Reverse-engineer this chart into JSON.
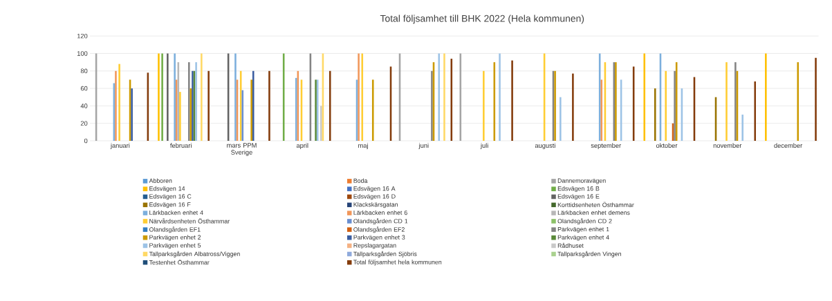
{
  "chart_data": {
    "type": "bar",
    "title": "Total följsamhet till BHK 2022 (Hela kommunen)",
    "categories": [
      "januari",
      "februari",
      "mars PPM Sverige",
      "april",
      "maj",
      "juni",
      "juli",
      "augusti",
      "september",
      "oktober",
      "november",
      "december"
    ],
    "ylim": [
      0,
      120
    ],
    "yticks": [
      0,
      20,
      40,
      60,
      80,
      100,
      120
    ],
    "grid": "y",
    "legend": "bottom",
    "series": [
      {
        "name": "Abboren",
        "color": "#5b9bd5",
        "values": [
          null,
          null,
          null,
          null,
          null,
          null,
          null,
          null,
          null,
          null,
          null,
          null
        ]
      },
      {
        "name": "Boda",
        "color": "#ed7d31",
        "values": [
          null,
          null,
          null,
          null,
          null,
          null,
          null,
          null,
          null,
          null,
          null,
          null
        ]
      },
      {
        "name": "Dannemoravägen",
        "color": "#a5a5a5",
        "values": [
          100,
          null,
          null,
          null,
          null,
          100,
          100,
          null,
          null,
          null,
          null,
          null
        ]
      },
      {
        "name": "Edsvägen 14",
        "color": "#ffc000",
        "values": [
          null,
          100,
          null,
          null,
          null,
          null,
          null,
          null,
          null,
          100,
          null,
          100
        ]
      },
      {
        "name": "Edsvägen 16 A",
        "color": "#4472c4",
        "values": [
          null,
          null,
          null,
          null,
          null,
          null,
          null,
          null,
          null,
          null,
          null,
          null
        ]
      },
      {
        "name": "Edsvägen 16 B",
        "color": "#70ad47",
        "values": [
          null,
          100,
          null,
          100,
          null,
          null,
          null,
          null,
          null,
          null,
          null,
          null
        ]
      },
      {
        "name": "Edsvägen 16 C",
        "color": "#255e91",
        "values": [
          null,
          null,
          null,
          null,
          null,
          null,
          null,
          null,
          null,
          null,
          null,
          null
        ]
      },
      {
        "name": "Edsvägen 16 D",
        "color": "#9e480e",
        "values": [
          null,
          null,
          null,
          null,
          null,
          null,
          null,
          null,
          null,
          null,
          null,
          null
        ]
      },
      {
        "name": "Edsvägen 16 E",
        "color": "#636363",
        "values": [
          null,
          100,
          100,
          null,
          null,
          null,
          null,
          null,
          null,
          null,
          null,
          null
        ]
      },
      {
        "name": "Edsvägen 16 F",
        "color": "#997300",
        "values": [
          null,
          null,
          null,
          null,
          null,
          null,
          null,
          null,
          null,
          60,
          50,
          null
        ]
      },
      {
        "name": "Klackskärsgatan",
        "color": "#264478",
        "values": [
          null,
          null,
          null,
          null,
          null,
          null,
          null,
          null,
          null,
          null,
          null,
          null
        ]
      },
      {
        "name": "Korttidsenheten Östhammar",
        "color": "#43682b",
        "values": [
          null,
          null,
          null,
          null,
          null,
          null,
          null,
          null,
          null,
          null,
          null,
          null
        ]
      },
      {
        "name": "Lärkbacken enhet 4",
        "color": "#7cafdd",
        "values": [
          66,
          100,
          100,
          72,
          70,
          null,
          null,
          null,
          100,
          100,
          null,
          null
        ]
      },
      {
        "name": "Lärkbacken enhet 6",
        "color": "#f1975a",
        "values": [
          80,
          70,
          70,
          80,
          100,
          null,
          null,
          null,
          70,
          null,
          null,
          null
        ]
      },
      {
        "name": "Lärkbacken enhet demens",
        "color": "#b7b7b7",
        "values": [
          null,
          90,
          null,
          null,
          null,
          null,
          null,
          null,
          null,
          null,
          null,
          null
        ]
      },
      {
        "name": "Närvårdsenheten Östhammar",
        "color": "#ffcd33",
        "values": [
          88,
          56,
          80,
          70,
          100,
          null,
          80,
          100,
          90,
          80,
          90,
          null
        ]
      },
      {
        "name": "Olandsgården CD 1",
        "color": "#698ed0",
        "values": [
          null,
          null,
          58,
          null,
          null,
          null,
          null,
          null,
          null,
          null,
          null,
          null
        ]
      },
      {
        "name": "Olandsgården CD 2",
        "color": "#8cc168",
        "values": [
          null,
          null,
          null,
          null,
          null,
          null,
          null,
          null,
          null,
          null,
          null,
          null
        ]
      },
      {
        "name": "Olandsgården EF1",
        "color": "#327dc2",
        "values": [
          null,
          null,
          null,
          null,
          null,
          null,
          null,
          null,
          null,
          null,
          null,
          null
        ]
      },
      {
        "name": "Olandsgården EF2",
        "color": "#d26012",
        "values": [
          null,
          null,
          null,
          null,
          null,
          null,
          null,
          null,
          null,
          20,
          null,
          null
        ]
      },
      {
        "name": "Parkvägen enhet 1",
        "color": "#848484",
        "values": [
          null,
          90,
          null,
          100,
          null,
          80,
          null,
          80,
          90,
          80,
          90,
          null
        ]
      },
      {
        "name": "Parkvägen enhet 2",
        "color": "#cc9a00",
        "values": [
          70,
          60,
          70,
          null,
          70,
          90,
          90,
          80,
          90,
          90,
          80,
          90
        ]
      },
      {
        "name": "Parkvägen enhet 3",
        "color": "#3a5da0",
        "values": [
          60,
          80,
          80,
          null,
          null,
          null,
          null,
          null,
          null,
          null,
          null,
          null
        ]
      },
      {
        "name": "Parkvägen enhet 4",
        "color": "#5a8a39",
        "values": [
          null,
          80,
          null,
          70,
          null,
          null,
          null,
          null,
          null,
          null,
          null,
          null
        ]
      },
      {
        "name": "Parkvägen enhet 5",
        "color": "#9dc3e6",
        "values": [
          null,
          90,
          null,
          70,
          null,
          100,
          100,
          50,
          70,
          60,
          30,
          null
        ]
      },
      {
        "name": "Repslagargatan",
        "color": "#f4b183",
        "values": [
          null,
          null,
          null,
          null,
          null,
          null,
          null,
          null,
          null,
          null,
          null,
          null
        ]
      },
      {
        "name": "Rådhuset",
        "color": "#c9c9c9",
        "values": [
          null,
          null,
          null,
          40,
          null,
          null,
          null,
          null,
          null,
          null,
          null,
          null
        ]
      },
      {
        "name": "Tallparksgården Albatross/Viggen",
        "color": "#ffd966",
        "values": [
          null,
          100,
          null,
          100,
          null,
          100,
          null,
          null,
          null,
          null,
          null,
          null
        ]
      },
      {
        "name": "Tallparksgården Sjöbris",
        "color": "#8faadc",
        "values": [
          null,
          null,
          null,
          null,
          null,
          null,
          null,
          null,
          null,
          null,
          null,
          null
        ]
      },
      {
        "name": "Tallparksgården Vingen",
        "color": "#a9d18e",
        "values": [
          null,
          null,
          null,
          null,
          null,
          null,
          null,
          null,
          null,
          null,
          null,
          null
        ]
      },
      {
        "name": "Testenhet Östhammar",
        "color": "#1f4e79",
        "values": [
          null,
          null,
          null,
          null,
          null,
          null,
          null,
          null,
          null,
          null,
          null,
          null
        ]
      },
      {
        "name": "Total följsamhet hela kommunen",
        "color": "#843c0c",
        "values": [
          78,
          80,
          80,
          80,
          85,
          94,
          92,
          77,
          85,
          73,
          68,
          95
        ]
      }
    ]
  }
}
